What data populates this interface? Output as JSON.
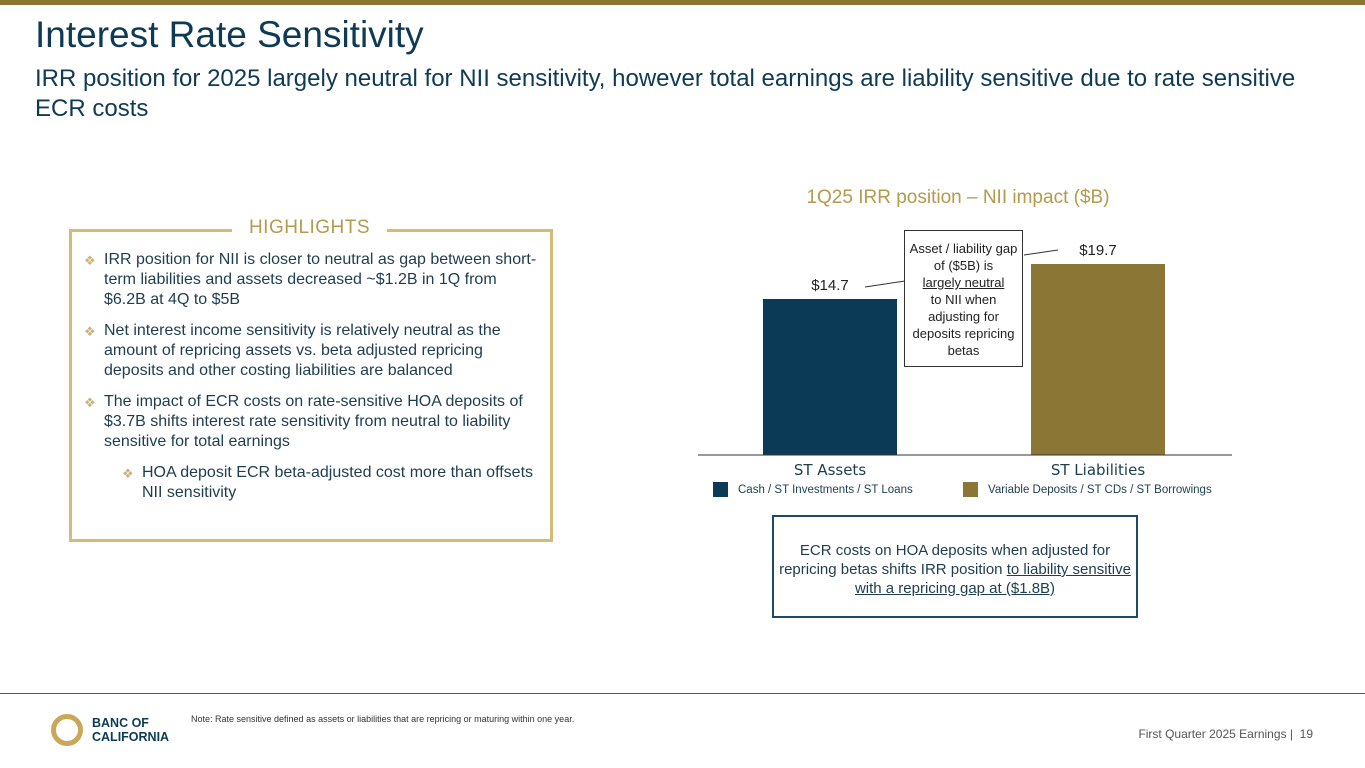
{
  "header": {
    "title": "Interest Rate Sensitivity",
    "subtitle": "IRR position for 2025 largely neutral for NII sensitivity, however total earnings are liability sensitive due to rate sensitive ECR costs"
  },
  "highlights": {
    "label": "HIGHLIGHTS",
    "bullets": [
      "IRR position for NII is closer to neutral as gap between short-term liabilities and assets decreased ~$1.2B in 1Q from $6.2B at 4Q to $5B",
      "Net interest income sensitivity is relatively neutral as the amount of repricing assets vs. beta adjusted repricing deposits and other costing liabilities are balanced",
      "The impact of ECR costs on rate-sensitive HOA deposits of $3.7B shifts interest rate sensitivity from neutral to liability sensitive for total earnings"
    ],
    "sub_bullets": [
      "HOA deposit ECR beta-adjusted cost more than offsets NII sensitivity"
    ]
  },
  "chart_data": {
    "type": "bar",
    "title": "1Q25 IRR position – NII impact ($B)",
    "categories": [
      "ST Assets",
      "ST Liabilities"
    ],
    "values": [
      14.7,
      19.7
    ],
    "value_labels": [
      "$14.7",
      "$19.7"
    ],
    "colors": [
      "#0b3a56",
      "#8b7636"
    ],
    "legend": [
      "Cash / ST Investments / ST Loans",
      "Variable Deposits / ST CDs / ST Borrowings"
    ],
    "ylim": [
      -7.6,
      19.7
    ],
    "grid": false,
    "callout": {
      "line1": "Asset / liability gap of ($5B) is",
      "underlined": "largely neutral",
      "line2": "to NII when adjusting for deposits repricing betas"
    }
  },
  "ecr_box": {
    "text": "ECR costs on HOA deposits when adjusted for repricing betas shifts IRR position",
    "underlined": "to liability sensitive with a repricing gap at ($1.8B)"
  },
  "footer": {
    "logo_text": "BANC OF CALIFORNIA",
    "logo_line1": "BANC OF",
    "logo_line2": "CALIFORNIA",
    "note": "Note: Rate sensitive defined as assets or liabilities that are repricing or maturing within one year.",
    "earnings_label": "First Quarter 2025 Earnings |",
    "page_number": "19"
  }
}
